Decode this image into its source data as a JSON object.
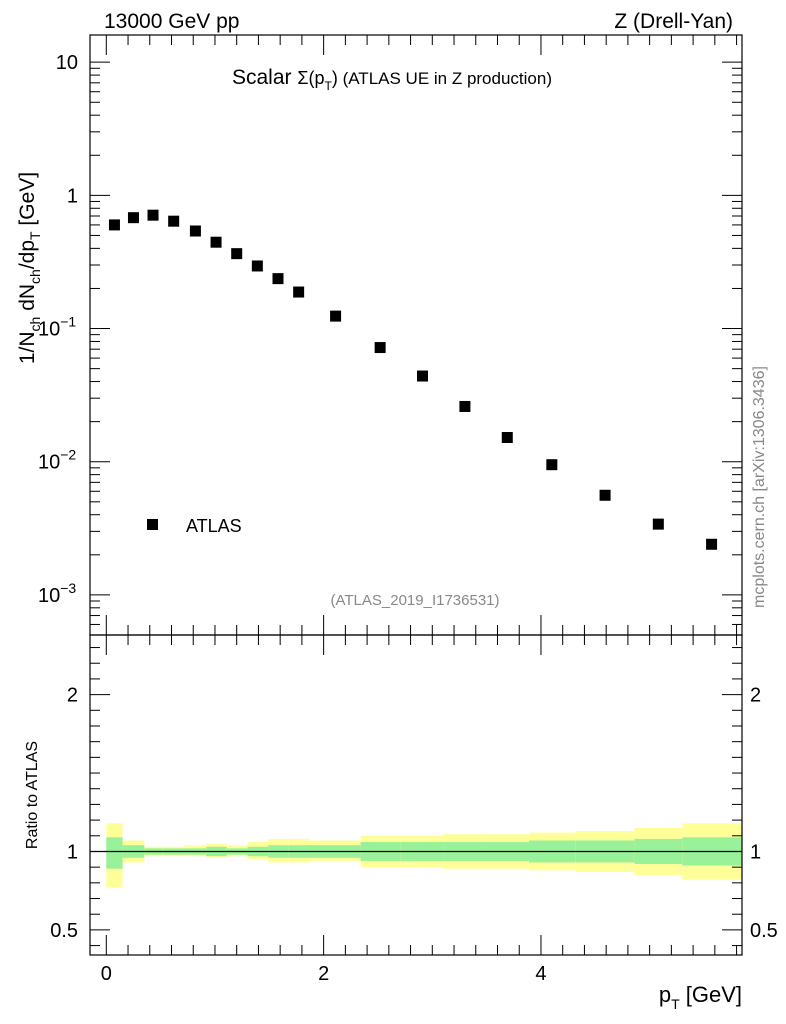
{
  "header": {
    "left": "13000 GeV pp",
    "right": "Z (Drell-Yan)"
  },
  "side_label": "mcplots.cern.ch [arXiv:1306.3436]",
  "colors": {
    "data_marker": "#000000",
    "band_inner": "#99f299",
    "band_outer": "#ffff99"
  },
  "chart_data": [
    {
      "type": "scatter",
      "title_prefix": "Scalar ",
      "title_sigma": "Σ(p",
      "title_sub": "T",
      "title_close": ")",
      "title_suffix": " (ATLAS UE in Z production)",
      "ylabel": "1/N_ch dN_ch/dp_T [GeV]",
      "ylabel_parts": {
        "a": "1/N",
        "a_sub": "ch",
        "b": " dN",
        "b_sub": "ch",
        "c": "/dp",
        "c_sub": "T",
        "d": " [GeV]"
      },
      "yscale": "log",
      "ylim": [
        0.0005,
        16
      ],
      "xlim": [
        -0.15,
        5.85
      ],
      "y_ticks": [
        {
          "v": 10,
          "label": "10",
          "exp": ""
        },
        {
          "v": 1,
          "label": "1",
          "exp": ""
        },
        {
          "v": 0.1,
          "label": "10",
          "exp": "−1"
        },
        {
          "v": 0.01,
          "label": "10",
          "exp": "−2"
        },
        {
          "v": 0.001,
          "label": "10",
          "exp": "−3"
        }
      ],
      "legend": {
        "label": "ATLAS",
        "position": "lower-left"
      },
      "watermark": "(ATLAS_2019_I1736531)",
      "series": [
        {
          "name": "ATLAS",
          "x": [
            0.075,
            0.25,
            0.43,
            0.62,
            0.82,
            1.01,
            1.2,
            1.39,
            1.58,
            1.77,
            2.11,
            2.52,
            2.91,
            3.3,
            3.69,
            4.1,
            4.59,
            5.08,
            5.57
          ],
          "y": [
            0.6,
            0.68,
            0.71,
            0.64,
            0.54,
            0.445,
            0.365,
            0.295,
            0.237,
            0.188,
            0.124,
            0.072,
            0.044,
            0.026,
            0.0152,
            0.0095,
            0.0056,
            0.0034,
            0.0024
          ]
        }
      ]
    },
    {
      "type": "area",
      "ylabel": "Ratio to ATLAS",
      "xlabel_main": "p",
      "xlabel_sub": "T",
      "xlabel_unit": " [GeV]",
      "xlim": [
        -0.15,
        5.85
      ],
      "ylim": [
        0.34,
        2.38
      ],
      "x_ticks": [
        {
          "v": 0,
          "label": "0"
        },
        {
          "v": 2,
          "label": "2"
        },
        {
          "v": 4,
          "label": "4"
        }
      ],
      "y_ticks": [
        {
          "v": 2,
          "label": "2"
        },
        {
          "v": 1,
          "label": "1"
        },
        {
          "v": 0.5,
          "label": "0.5"
        }
      ],
      "reference_line": 1,
      "bands": {
        "edges": [
          0.0,
          0.15,
          0.35,
          0.52,
          0.72,
          0.92,
          1.11,
          1.3,
          1.49,
          1.68,
          1.87,
          2.34,
          2.71,
          3.1,
          3.49,
          3.89,
          4.32,
          4.86,
          5.3,
          5.85
        ],
        "outer_lo": [
          0.77,
          0.93,
          0.97,
          0.97,
          0.97,
          0.96,
          0.97,
          0.95,
          0.93,
          0.93,
          0.94,
          0.9,
          0.9,
          0.89,
          0.89,
          0.88,
          0.87,
          0.85,
          0.82
        ],
        "outer_hi": [
          1.18,
          1.07,
          1.03,
          1.03,
          1.04,
          1.05,
          1.04,
          1.06,
          1.08,
          1.08,
          1.07,
          1.1,
          1.1,
          1.11,
          1.11,
          1.12,
          1.13,
          1.15,
          1.18
        ],
        "inner_lo": [
          0.89,
          0.96,
          0.98,
          0.98,
          0.98,
          0.97,
          0.98,
          0.97,
          0.96,
          0.96,
          0.96,
          0.94,
          0.94,
          0.94,
          0.94,
          0.93,
          0.93,
          0.92,
          0.91
        ],
        "inner_hi": [
          1.09,
          1.04,
          1.02,
          1.02,
          1.02,
          1.03,
          1.02,
          1.03,
          1.04,
          1.04,
          1.04,
          1.06,
          1.06,
          1.06,
          1.06,
          1.07,
          1.07,
          1.08,
          1.09
        ]
      }
    }
  ]
}
